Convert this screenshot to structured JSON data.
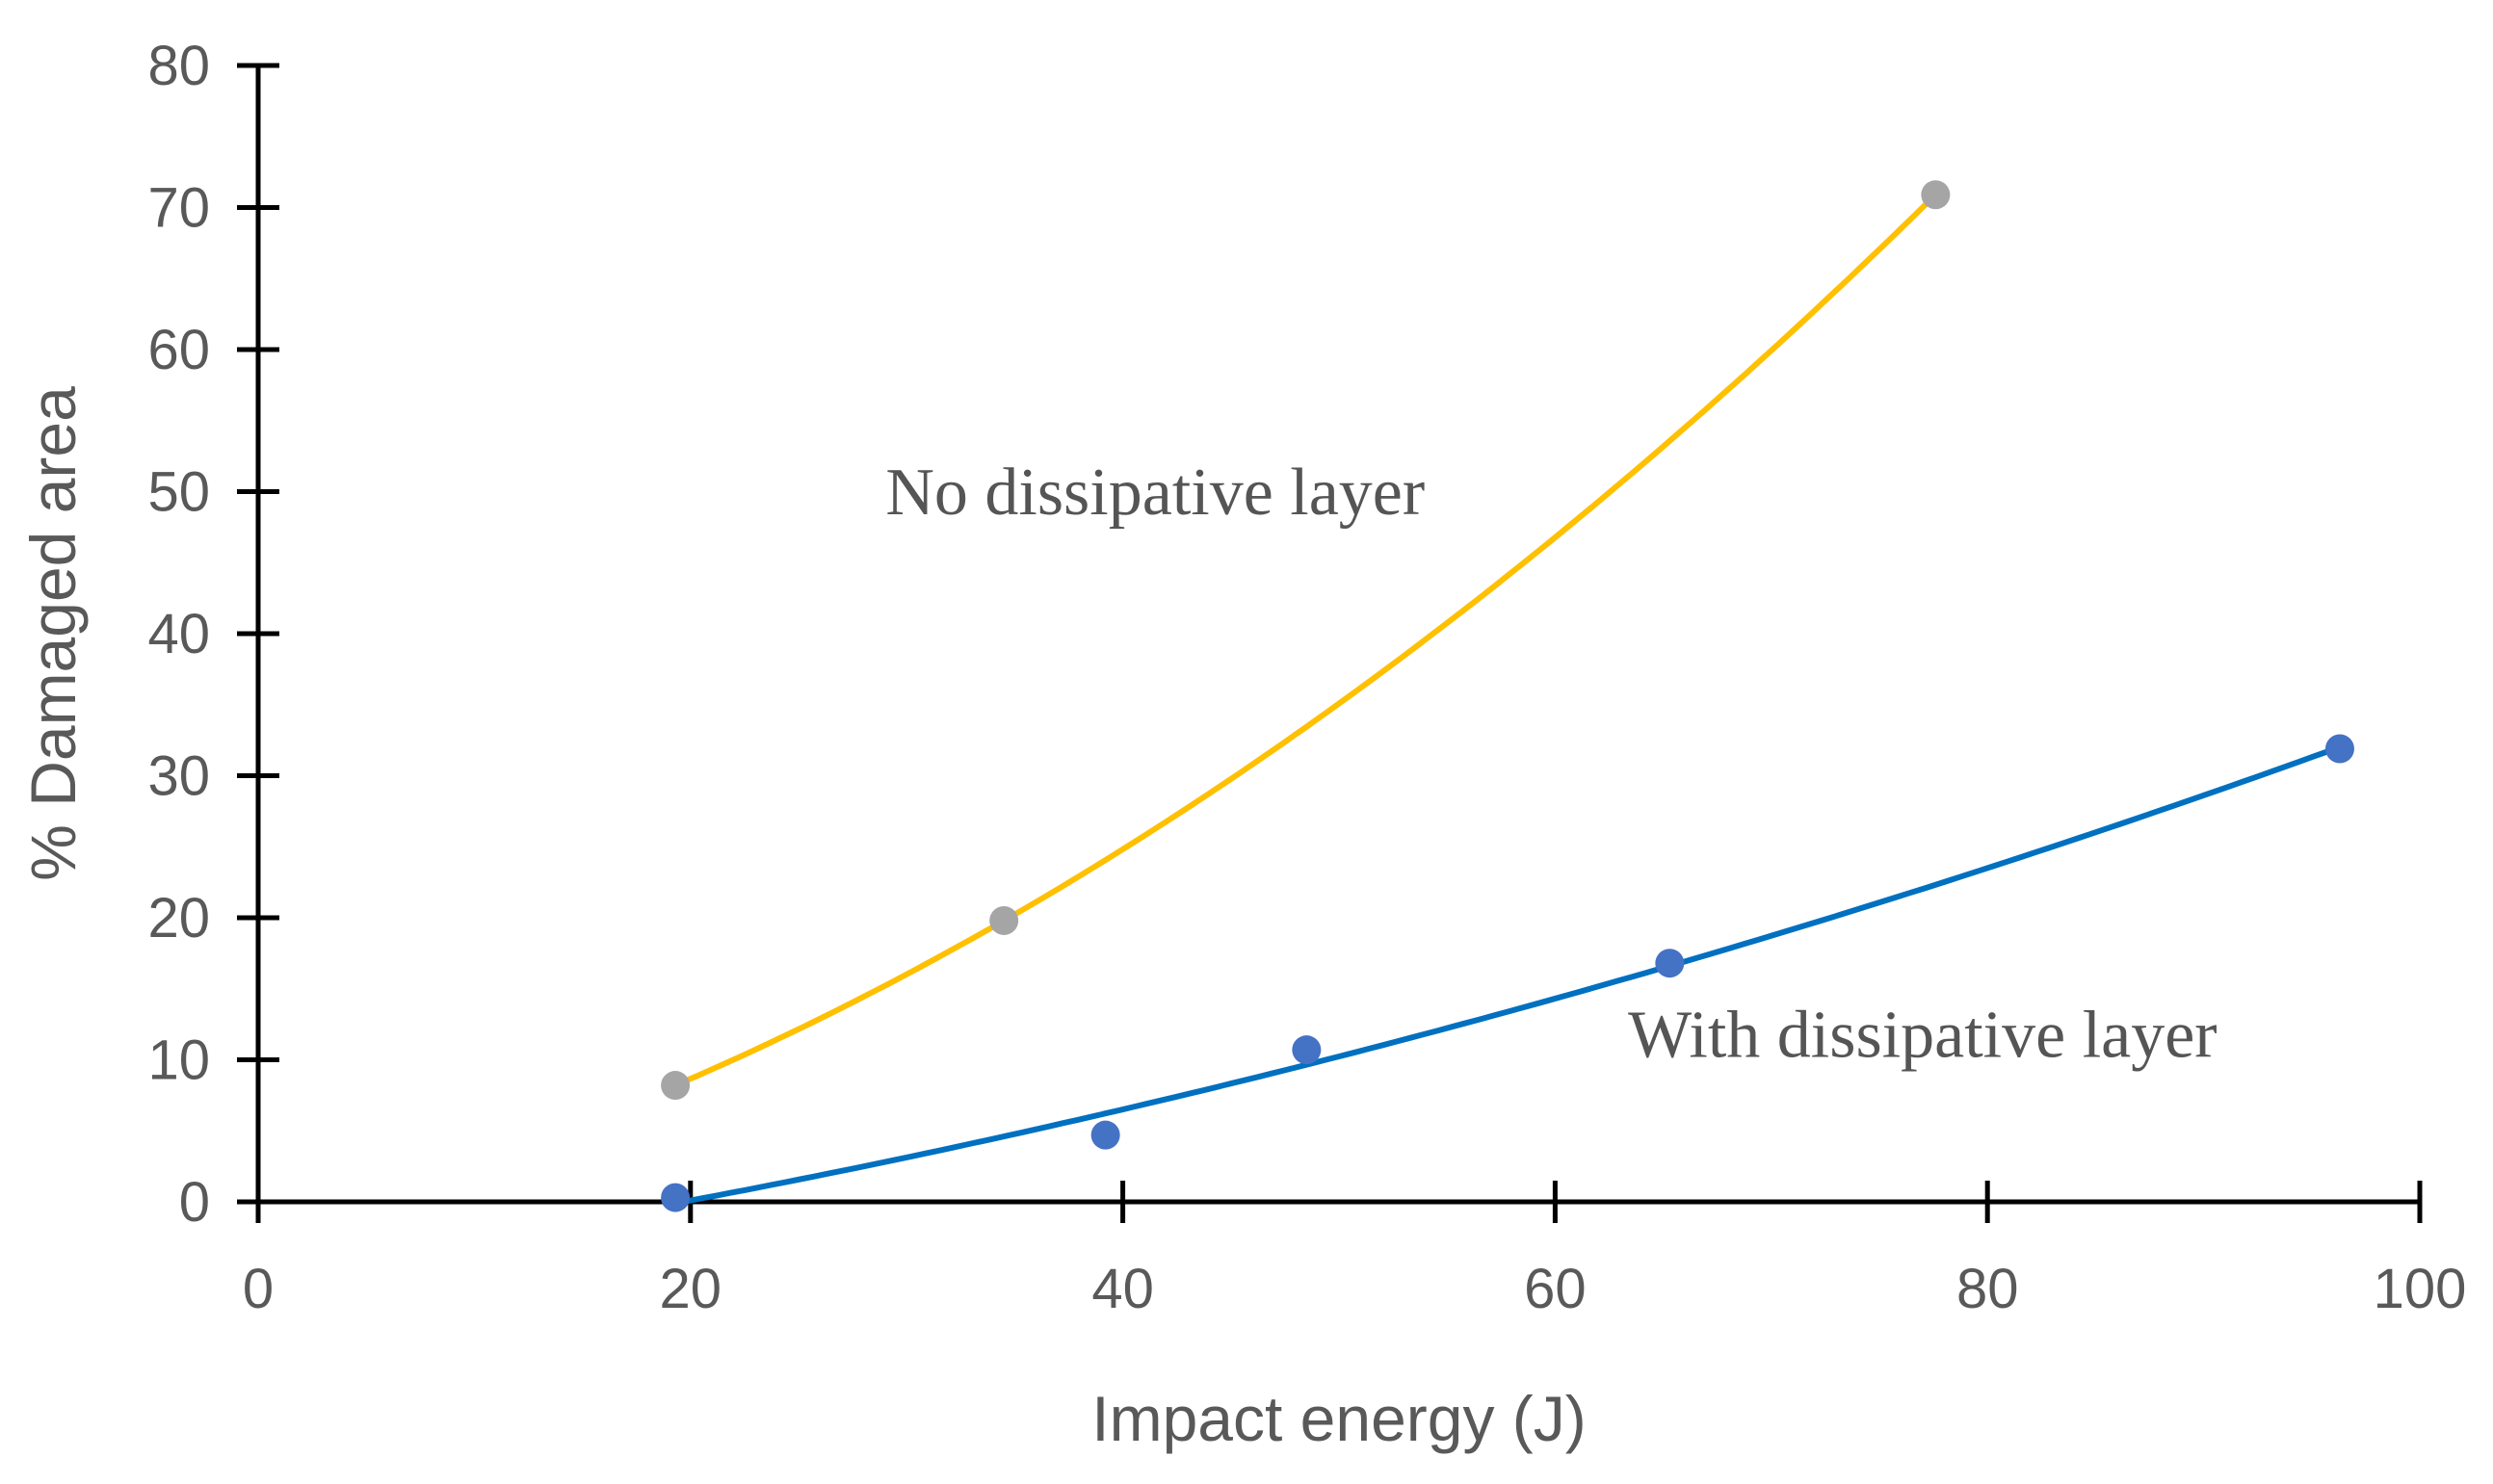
{
  "chart_data": {
    "type": "scatter",
    "title": "",
    "xlabel": "Impact energy (J)",
    "ylabel": "% Damaged area",
    "xlim": [
      0,
      100
    ],
    "ylim": [
      0,
      80
    ],
    "x_ticks": [
      0,
      20,
      40,
      60,
      80,
      100
    ],
    "y_ticks": [
      0,
      10,
      20,
      30,
      40,
      50,
      60,
      70,
      80
    ],
    "grid": false,
    "legend": "none",
    "series": [
      {
        "name": "No dissipative layer",
        "marker_color": "#A5A5A5",
        "trend_color": "#FFC000",
        "trend_type": "polynomial",
        "points": [
          {
            "x": 19.3,
            "y": 8.2
          },
          {
            "x": 34.5,
            "y": 19.8
          },
          {
            "x": 77.6,
            "y": 70.9
          }
        ],
        "trend": {
          "x_start": 19.3,
          "x_end": 77.6
        }
      },
      {
        "name": "With dissipative layer",
        "marker_color": "#4472C4",
        "trend_color": "#0070C0",
        "trend_type": "polynomial",
        "points": [
          {
            "x": 19.3,
            "y": 0.3
          },
          {
            "x": 39.2,
            "y": 4.7
          },
          {
            "x": 48.5,
            "y": 10.7
          },
          {
            "x": 65.3,
            "y": 16.8
          },
          {
            "x": 96.3,
            "y": 31.9
          }
        ],
        "trend": {
          "x_start": 19.3,
          "x_end": 96.3
        }
      }
    ],
    "annotations": [
      {
        "text": "No dissipative layer",
        "x": 41.5,
        "y": 48.4
      },
      {
        "text": "With dissipative layer",
        "x": 77.0,
        "y": 10.2
      }
    ]
  }
}
